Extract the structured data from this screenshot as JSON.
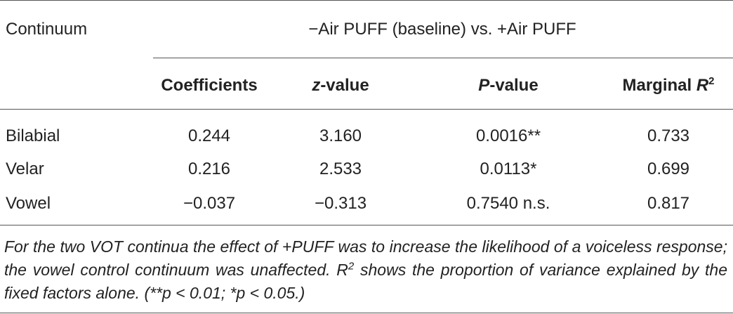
{
  "header": {
    "continuum_label": "Continuum",
    "group_label": "−Air PUFF (baseline) vs. +Air PUFF"
  },
  "columns": [
    {
      "text": "Coefficients"
    },
    {
      "italic": "z",
      "text": "-value"
    },
    {
      "italic": "P",
      "text": "-value"
    },
    {
      "text": "Marginal ",
      "italic": "R",
      "sup": "2"
    }
  ],
  "rows": [
    [
      "Bilabial",
      "0.244",
      "3.160",
      "0.0016**",
      "0.733"
    ],
    [
      "Velar",
      "0.216",
      "2.533",
      "0.0113*",
      "0.699"
    ],
    [
      "Vowel",
      "−0.037",
      "−0.313",
      "0.7540 n.s.",
      "0.817"
    ]
  ],
  "footnote": {
    "before": "For the two VOT continua the effect of +PUFF was to increase the likelihood of a voiceless response; the vowel control continuum was unaffected. R",
    "sup": "2",
    "after": " shows the proportion of variance explained by the fixed factors alone. (**p < 0.01; *p < 0.05.)"
  }
}
